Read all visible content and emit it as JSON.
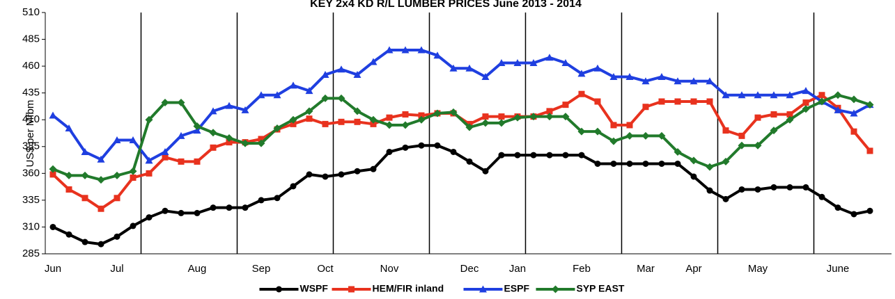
{
  "chart_data": {
    "type": "line",
    "title": "KEY 2x4 KD R/L LUMBER PRICES June 2013 - 2014",
    "y_label": "US$ per Mfbm",
    "categories": [
      "Jun",
      null,
      null,
      null,
      "Jul",
      null,
      null,
      null,
      null,
      "Aug",
      null,
      null,
      null,
      "Sep",
      null,
      null,
      null,
      "Oct",
      null,
      null,
      null,
      "Nov",
      null,
      null,
      null,
      null,
      "Dec",
      null,
      null,
      "Jan",
      null,
      null,
      null,
      "Feb",
      null,
      null,
      null,
      "Mar",
      null,
      null,
      "Apr",
      null,
      null,
      null,
      "May",
      null,
      null,
      null,
      null,
      "June",
      null,
      null
    ],
    "ylim": [
      285,
      510
    ],
    "yticks": [
      285,
      310,
      335,
      360,
      385,
      410,
      435,
      460,
      485,
      510
    ],
    "grid": false,
    "legend": "bottom",
    "series": [
      {
        "name": "WSPF",
        "color": "#000000",
        "marker": "circle",
        "values": [
          310,
          303,
          296,
          294,
          301,
          311,
          319,
          325,
          323,
          323,
          328,
          328,
          328,
          335,
          337,
          348,
          359,
          357,
          359,
          362,
          364,
          380,
          384,
          386,
          386,
          380,
          371,
          362,
          377,
          377,
          377,
          377,
          377,
          377,
          369,
          369,
          369,
          369,
          369,
          369,
          357,
          344,
          336,
          345,
          345,
          347,
          347,
          347,
          338,
          328,
          322,
          325
        ]
      },
      {
        "name": "HEM/FIR inland",
        "color": "#e8321e",
        "marker": "square",
        "values": [
          359,
          345,
          337,
          327,
          337,
          356,
          360,
          375,
          371,
          371,
          384,
          389,
          389,
          392,
          401,
          406,
          411,
          406,
          408,
          408,
          406,
          412,
          415,
          414,
          416,
          416,
          406,
          413,
          413,
          413,
          413,
          418,
          424,
          434,
          427,
          405,
          405,
          422,
          427,
          427,
          427,
          427,
          400,
          395,
          412,
          415,
          415,
          426,
          433,
          421,
          399,
          381
        ]
      },
      {
        "name": "ESPF",
        "color": "#1f3fe0",
        "marker": "triangle",
        "values": [
          414,
          402,
          380,
          373,
          391,
          391,
          372,
          380,
          395,
          400,
          418,
          423,
          419,
          433,
          433,
          442,
          437,
          452,
          457,
          452,
          464,
          475,
          475,
          475,
          470,
          458,
          458,
          450,
          463,
          463,
          463,
          468,
          463,
          453,
          458,
          450,
          450,
          446,
          450,
          446,
          446,
          446,
          433,
          433,
          433,
          433,
          433,
          437,
          427,
          419,
          416,
          424
        ]
      },
      {
        "name": "SYP EAST",
        "color": "#217a2b",
        "marker": "diamond",
        "values": [
          364,
          358,
          358,
          354,
          358,
          362,
          410,
          426,
          426,
          404,
          398,
          393,
          388,
          388,
          402,
          410,
          418,
          430,
          430,
          418,
          410,
          405,
          405,
          410,
          416,
          417,
          403,
          407,
          407,
          412,
          413,
          413,
          413,
          399,
          399,
          390,
          395,
          395,
          395,
          380,
          372,
          366,
          371,
          386,
          386,
          400,
          410,
          420,
          427,
          433,
          429,
          424
        ]
      }
    ]
  }
}
